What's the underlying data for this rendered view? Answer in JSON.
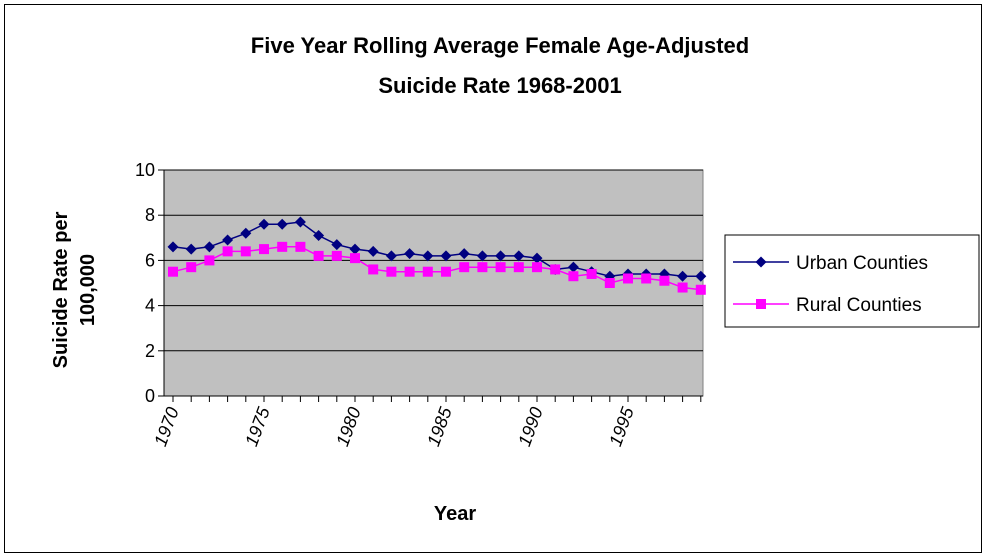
{
  "colors": {
    "plot_bg": "#c0c0c0",
    "urban": "#000080",
    "rural": "#ff00ff",
    "grid": "#000000"
  },
  "chart_data": {
    "type": "line",
    "title_line1": "Five Year Rolling Average Female Age-Adjusted",
    "title_line2": "Suicide Rate 1968-2001",
    "xlabel": "Year",
    "ylabel_line1": "Suicide Rate per",
    "ylabel_line2": "100,000",
    "ylim": [
      0,
      10
    ],
    "yticks": [
      0,
      2,
      4,
      6,
      8,
      10
    ],
    "xlim": [
      1970,
      1999
    ],
    "xticks": [
      1970,
      1975,
      1980,
      1985,
      1990,
      1995
    ],
    "grid": true,
    "legend": "right",
    "x": [
      1970,
      1971,
      1972,
      1973,
      1974,
      1975,
      1976,
      1977,
      1978,
      1979,
      1980,
      1981,
      1982,
      1983,
      1984,
      1985,
      1986,
      1987,
      1988,
      1989,
      1990,
      1991,
      1992,
      1993,
      1994,
      1995,
      1996,
      1997,
      1998,
      1999
    ],
    "series": [
      {
        "name": "Urban Counties",
        "marker": "diamond",
        "values": [
          6.6,
          6.5,
          6.6,
          6.9,
          7.2,
          7.6,
          7.6,
          7.7,
          7.1,
          6.7,
          6.5,
          6.4,
          6.2,
          6.3,
          6.2,
          6.2,
          6.3,
          6.2,
          6.2,
          6.2,
          6.1,
          5.6,
          5.7,
          5.5,
          5.3,
          5.4,
          5.4,
          5.4,
          5.3,
          5.3
        ]
      },
      {
        "name": "Rural Counties",
        "marker": "square",
        "values": [
          5.5,
          5.7,
          6.0,
          6.4,
          6.4,
          6.5,
          6.6,
          6.6,
          6.2,
          6.2,
          6.1,
          5.6,
          5.5,
          5.5,
          5.5,
          5.5,
          5.7,
          5.7,
          5.7,
          5.7,
          5.7,
          5.6,
          5.3,
          5.4,
          5.0,
          5.2,
          5.2,
          5.1,
          4.8,
          4.7
        ]
      }
    ]
  }
}
